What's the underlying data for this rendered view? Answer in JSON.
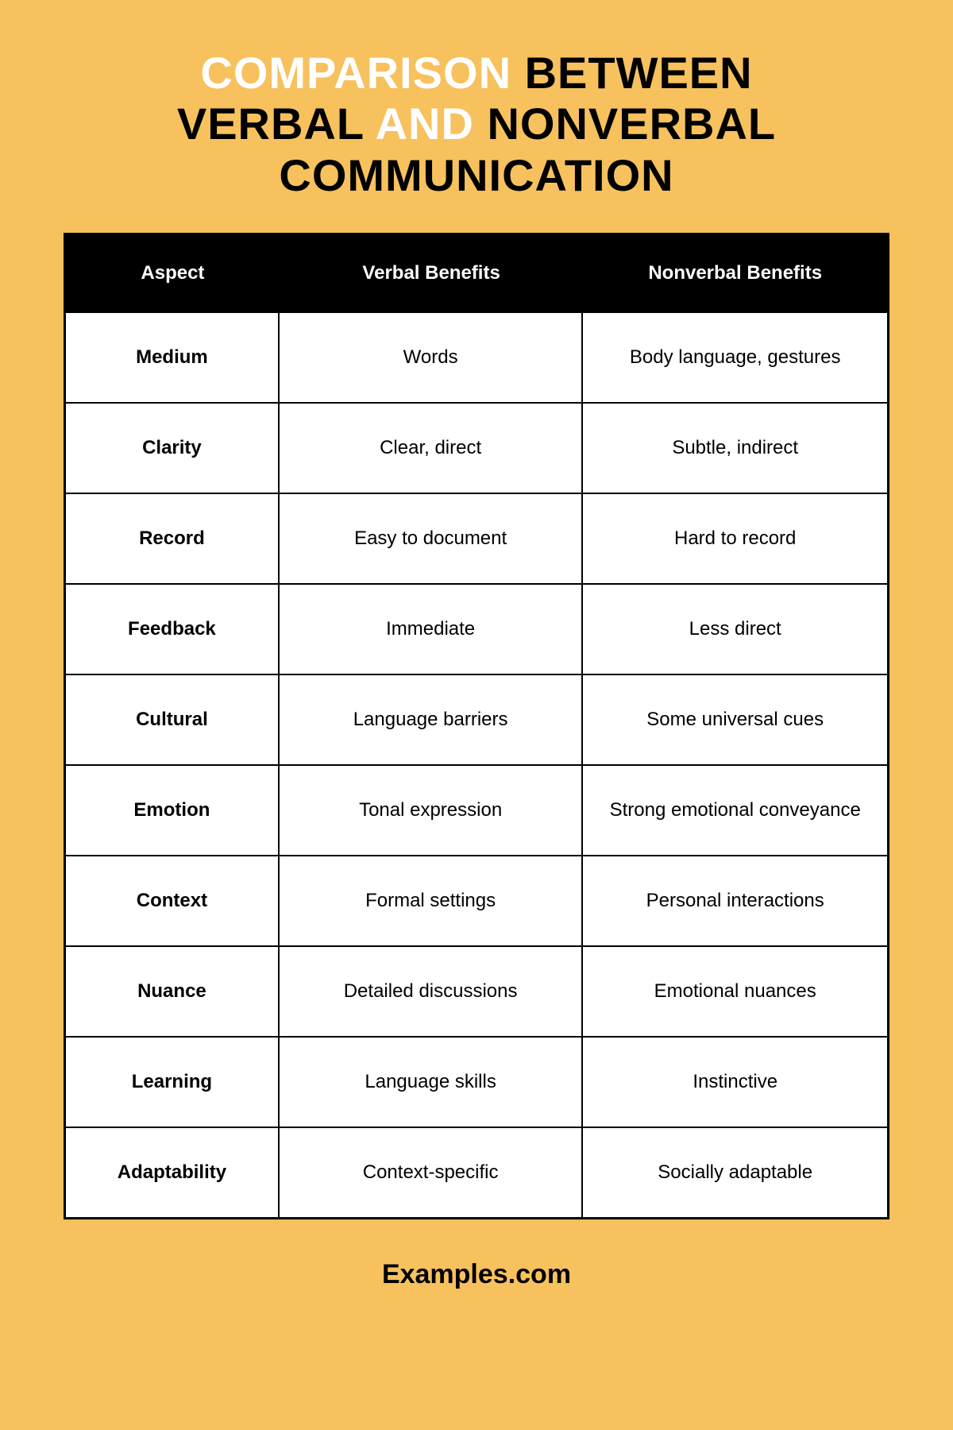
{
  "title": {
    "w1": "COMPARISON",
    "w2": "BETWEEN",
    "w3": "VERBAL",
    "w4": "AND",
    "w5": "NONVERBAL",
    "w6": "COMMUNICATION"
  },
  "table": {
    "type": "table",
    "columns": [
      "Aspect",
      "Verbal Benefits",
      "Nonverbal Benefits"
    ],
    "rows": [
      [
        "Medium",
        "Words",
        "Body language, gestures"
      ],
      [
        "Clarity",
        "Clear, direct",
        "Subtle, indirect"
      ],
      [
        "Record",
        "Easy to document",
        "Hard to record"
      ],
      [
        "Feedback",
        "Immediate",
        "Less direct"
      ],
      [
        "Cultural",
        "Language barriers",
        "Some universal cues"
      ],
      [
        "Emotion",
        "Tonal expression",
        "Strong emotional conveyance"
      ],
      [
        "Context",
        "Formal settings",
        "Personal interactions"
      ],
      [
        "Nuance",
        "Detailed discussions",
        "Emotional nuances"
      ],
      [
        "Learning",
        "Language skills",
        "Instinctive"
      ],
      [
        "Adaptability",
        "Context-specific",
        "Socially adaptable"
      ]
    ],
    "header_bg": "#000000",
    "header_color": "#ffffff",
    "body_bg": "#ffffff",
    "border_color": "#000000",
    "col_widths_pct": [
      26,
      37,
      37
    ],
    "cell_fontsize": 24,
    "header_fontsize": 24,
    "aspect_fontweight": 800
  },
  "footer": "Examples.com",
  "colors": {
    "page_bg": "#f7c15e",
    "title_white": "#ffffff",
    "title_black": "#000000"
  },
  "title_fontsize": 56,
  "footer_fontsize": 34
}
